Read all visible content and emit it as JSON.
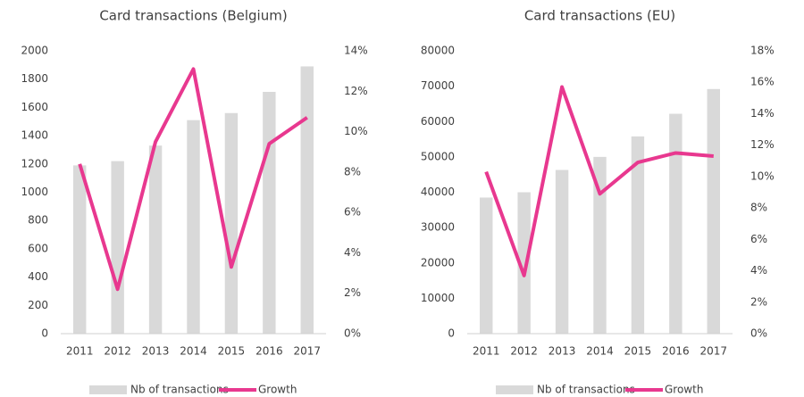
{
  "chart_data": [
    {
      "type": "bar_line",
      "title": "Card transactions (Belgium)",
      "categories": [
        "2011",
        "2012",
        "2013",
        "2014",
        "2015",
        "2016",
        "2017"
      ],
      "series": [
        {
          "name": "Nb of transactions",
          "color": "#d9d9d9",
          "values": [
            1190,
            1220,
            1330,
            1510,
            1560,
            1710,
            1890
          ]
        },
        {
          "name": "Growth",
          "color": "#e8388f",
          "axis": "y2",
          "values": [
            8.4,
            2.2,
            9.5,
            13.1,
            3.3,
            9.4,
            10.7
          ]
        }
      ],
      "ylim": [
        0,
        2000
      ],
      "yticks": [
        0,
        200,
        400,
        600,
        800,
        1000,
        1200,
        1400,
        1600,
        1800,
        2000
      ],
      "y2lim": [
        0,
        14
      ],
      "y2ticks": [
        {
          "value": 0,
          "label": "0%"
        },
        {
          "value": 2,
          "label": "2%"
        },
        {
          "value": 4,
          "label": "4%"
        },
        {
          "value": 6,
          "label": "6%"
        },
        {
          "value": 8,
          "label": "8%"
        },
        {
          "value": 10,
          "label": "10%"
        },
        {
          "value": 12,
          "label": "12%"
        },
        {
          "value": 14,
          "label": "14%"
        }
      ],
      "legend": "bottom"
    },
    {
      "type": "bar_line",
      "title": "Card transactions (EU)",
      "categories": [
        "2011",
        "2012",
        "2013",
        "2014",
        "2015",
        "2016",
        "2017"
      ],
      "series": [
        {
          "name": "Nb of transactions",
          "color": "#d9d9d9",
          "values": [
            38500,
            40000,
            46300,
            50000,
            55800,
            62200,
            69200
          ]
        },
        {
          "name": "Growth",
          "color": "#e8388f",
          "axis": "y2",
          "values": [
            10.3,
            3.7,
            15.7,
            8.9,
            10.9,
            11.5,
            11.3
          ]
        }
      ],
      "ylim": [
        0,
        80000
      ],
      "yticks": [
        0,
        10000,
        20000,
        30000,
        40000,
        50000,
        60000,
        70000,
        80000
      ],
      "y2lim": [
        0,
        18
      ],
      "y2ticks": [
        {
          "value": 0,
          "label": "0%"
        },
        {
          "value": 2,
          "label": "2%"
        },
        {
          "value": 4,
          "label": "4%"
        },
        {
          "value": 6,
          "label": "6%"
        },
        {
          "value": 8,
          "label": "8%"
        },
        {
          "value": 10,
          "label": "10%"
        },
        {
          "value": 12,
          "label": "12%"
        },
        {
          "value": 14,
          "label": "14%"
        },
        {
          "value": 16,
          "label": "16%"
        },
        {
          "value": 18,
          "label": "18%"
        }
      ],
      "legend": "bottom"
    }
  ]
}
